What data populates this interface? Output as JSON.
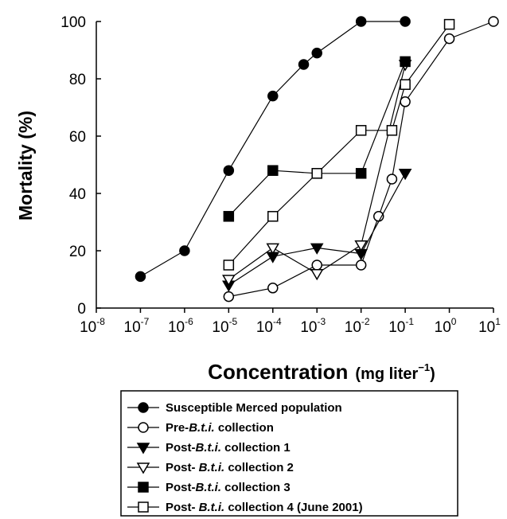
{
  "chart_data": {
    "type": "line",
    "x_scale": "log",
    "xlabel": "Concentration",
    "xlabel_unit": "(mg liter",
    "xlabel_unit_sup": "−1",
    "xlabel_unit_close": ")",
    "ylabel": "Mortality (%)",
    "xlim": [
      1e-08,
      10
    ],
    "ylim": [
      0,
      100
    ],
    "x_ticks": [
      {
        "base": "10",
        "exp": "-8"
      },
      {
        "base": "10",
        "exp": "-7"
      },
      {
        "base": "10",
        "exp": "-6"
      },
      {
        "base": "10",
        "exp": "-5"
      },
      {
        "base": "10",
        "exp": "-4"
      },
      {
        "base": "10",
        "exp": "-3"
      },
      {
        "base": "10",
        "exp": "-2"
      },
      {
        "base": "10",
        "exp": "-1"
      },
      {
        "base": "10",
        "exp": "0"
      },
      {
        "base": "10",
        "exp": "1"
      }
    ],
    "y_ticks": [
      "0",
      "20",
      "40",
      "60",
      "80",
      "100"
    ],
    "grid": false,
    "legend_position": "bottom",
    "series": [
      {
        "name_parts": [
          {
            "t": "Susceptible Merced population",
            "i": false
          }
        ],
        "marker": "circle-filled",
        "x": [
          1e-07,
          1e-06,
          1e-05,
          0.0001,
          0.0005,
          0.001,
          0.01,
          0.1
        ],
        "y": [
          11,
          20,
          48,
          74,
          85,
          89,
          100,
          100
        ]
      },
      {
        "name_parts": [
          {
            "t": "Pre-",
            "i": false
          },
          {
            "t": "B.t.i.",
            "i": true
          },
          {
            "t": " collection",
            "i": false
          }
        ],
        "marker": "circle-open",
        "x": [
          1e-05,
          0.0001,
          0.001,
          0.01,
          0.025,
          0.05,
          0.1,
          1,
          10
        ],
        "y": [
          4,
          7,
          15,
          15,
          32,
          45,
          72,
          94,
          100
        ]
      },
      {
        "name_parts": [
          {
            "t": "Post-",
            "i": false
          },
          {
            "t": "B.t.i.",
            "i": true
          },
          {
            "t": " collection 1",
            "i": false
          }
        ],
        "marker": "triangle-down-filled",
        "x": [
          1e-05,
          0.0001,
          0.001,
          0.01,
          0.1
        ],
        "y": [
          8,
          18,
          21,
          19,
          47
        ]
      },
      {
        "name_parts": [
          {
            "t": "Post- ",
            "i": false
          },
          {
            "t": "B.t.i.",
            "i": true
          },
          {
            "t": " collection 2",
            "i": false
          }
        ],
        "marker": "triangle-down-open",
        "x": [
          1e-05,
          0.0001,
          0.001,
          0.01,
          0.1
        ],
        "y": [
          10,
          21,
          12,
          22,
          85
        ]
      },
      {
        "name_parts": [
          {
            "t": "Post-",
            "i": false
          },
          {
            "t": "B.t.i.",
            "i": true
          },
          {
            "t": " collection 3",
            "i": false
          }
        ],
        "marker": "square-filled",
        "x": [
          1e-05,
          0.0001,
          0.001,
          0.01,
          0.1
        ],
        "y": [
          32,
          48,
          47,
          47,
          86
        ]
      },
      {
        "name_parts": [
          {
            "t": "Post- ",
            "i": false
          },
          {
            "t": "B.t.i.",
            "i": true
          },
          {
            "t": " collection 4 (June 2001)",
            "i": false
          }
        ],
        "marker": "square-open",
        "x": [
          1e-05,
          0.0001,
          0.001,
          0.01,
          0.05,
          0.1,
          1
        ],
        "y": [
          15,
          32,
          47,
          62,
          62,
          78,
          99
        ]
      }
    ]
  }
}
